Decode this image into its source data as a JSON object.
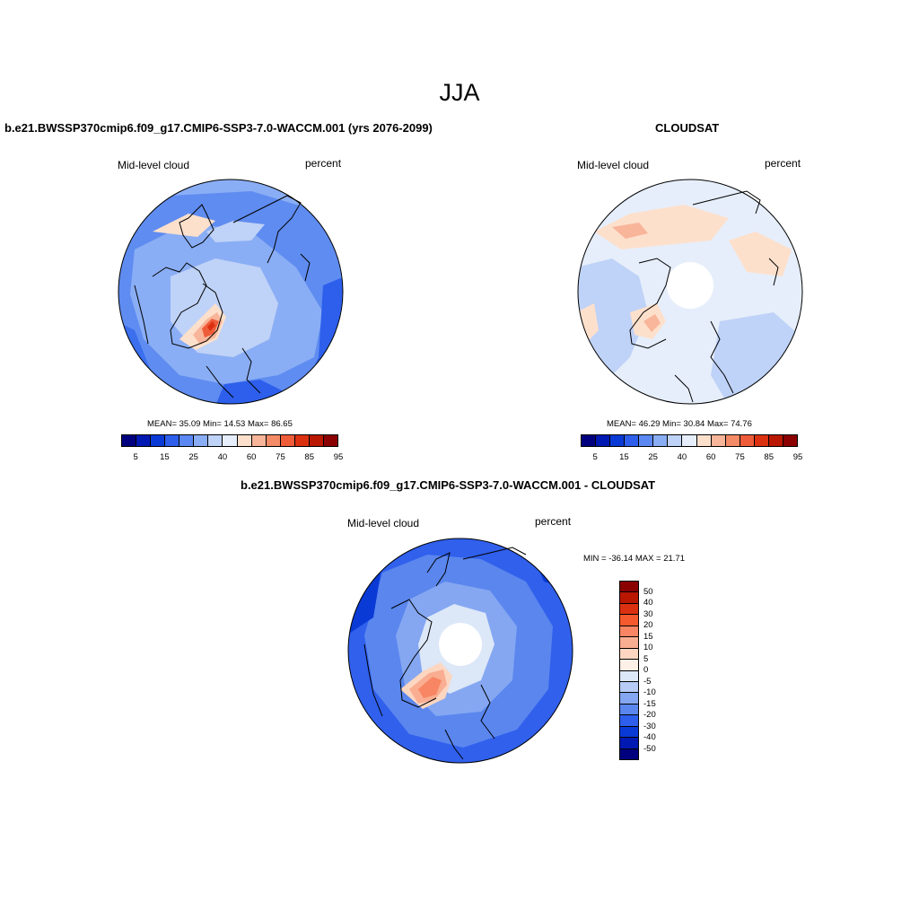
{
  "figure": {
    "title": "JJA",
    "top_left_title": "b.e21.BWSSP370cmip6.f09_g17.CMIP6-SSP3-7.0-WACCM.001 (yrs 2076-2099)",
    "top_right_title": "CLOUDSAT",
    "bottom_title": "b.e21.BWSSP370cmip6.f09_g17.CMIP6-SSP3-7.0-WACCM.001 - CLOUDSAT"
  },
  "panels": {
    "model": {
      "variable": "Mid-level cloud",
      "units": "percent",
      "stats": "MEAN=  35.09  Min=  14.53  Max=  86.65",
      "mean": 35.09,
      "min": 14.53,
      "max": 86.65
    },
    "obs": {
      "variable": "Mid-level cloud",
      "units": "percent",
      "stats": "MEAN=  46.29  Min=  30.84  Max=  74.76",
      "mean": 46.29,
      "min": 30.84,
      "max": 74.76
    },
    "diff": {
      "variable": "Mid-level cloud",
      "units": "percent",
      "stats": "MIN = -36.14 MAX =  21.71",
      "min": -36.14,
      "max": 21.71
    }
  },
  "colorbars": {
    "abs_labels": [
      "5",
      "15",
      "25",
      "40",
      "60",
      "75",
      "85",
      "95"
    ],
    "abs_colors": [
      "#00007f",
      "#0019b3",
      "#0a3ad6",
      "#2d5fec",
      "#5b88f2",
      "#8aaef5",
      "#bfd2f7",
      "#e6eefb",
      "#fde0cc",
      "#f8b599",
      "#f48a66",
      "#ef5c3a",
      "#dc3110",
      "#b91700",
      "#8b0000"
    ],
    "diff_labels": [
      "50",
      "40",
      "30",
      "20",
      "15",
      "10",
      "5",
      "0",
      "-5",
      "-10",
      "-15",
      "-20",
      "-30",
      "-40",
      "-50"
    ],
    "diff_colors": [
      "#8b0000",
      "#b91700",
      "#dc3110",
      "#f45a2d",
      "#f88563",
      "#f9ad91",
      "#fcd6c0",
      "#fdf0e6",
      "#dce7f8",
      "#b6cbf6",
      "#85a7f2",
      "#5a86ee",
      "#2d5fec",
      "#0a3ad6",
      "#0019b3",
      "#00007f"
    ]
  }
}
